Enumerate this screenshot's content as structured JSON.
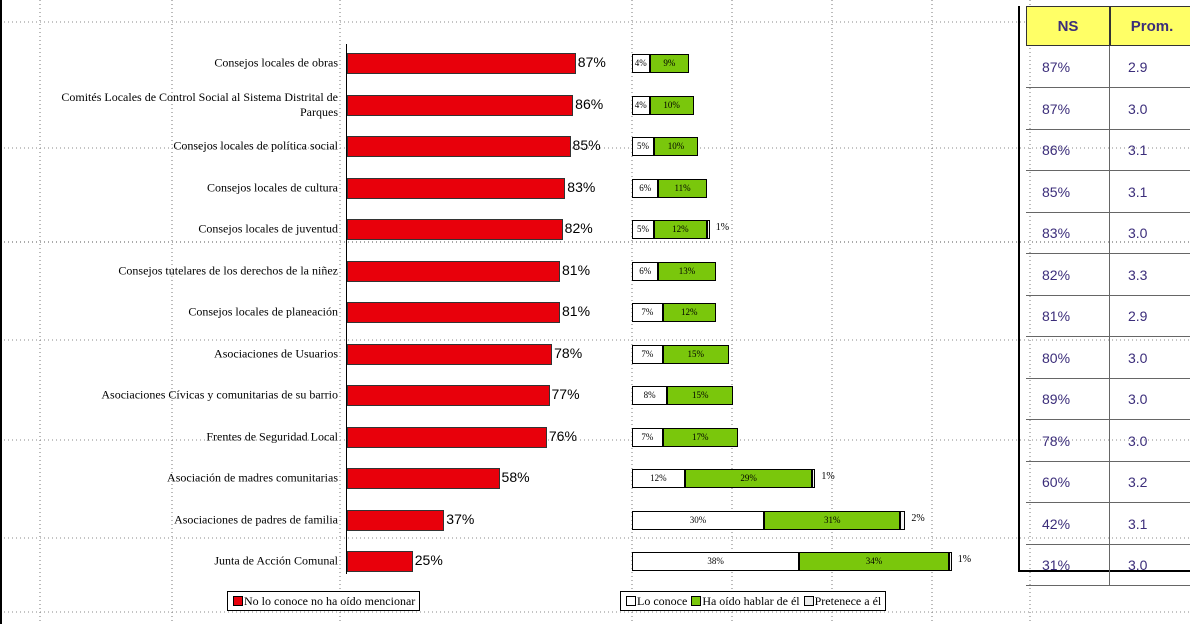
{
  "chart_data": {
    "type": "bar",
    "categories": [
      "Consejos locales de obras",
      "Comités Locales de Control Social al Sistema Distrital de Parques",
      "Consejos locales de política social",
      "Consejos locales de cultura",
      "Consejos locales de juventud",
      "Consejos tutelares de los derechos de la niñez",
      "Consejos locales de planeación",
      "Asociaciones de Usuarios",
      "Asociaciones Cívicas y comunitarias de su barrio",
      "Frentes de Seguridad Local",
      "Asociación de madres comunitarias",
      "Asociaciones de padres de familia",
      "Junta de Acción Comunal"
    ],
    "no_conoce": {
      "legend": "No lo conoce no ha oído mencionar",
      "color": "#e8000b",
      "values": [
        87,
        86,
        85,
        83,
        82,
        81,
        81,
        78,
        77,
        76,
        58,
        37,
        25
      ],
      "labels": [
        "87%",
        "86%",
        "85%",
        "83%",
        "82%",
        "81%",
        "81%",
        "78%",
        "77%",
        "76%",
        "58%",
        "37%",
        "25%"
      ]
    },
    "stacked": {
      "legend": [
        "Lo conoce",
        "Ha oído hablar de él",
        "Pretenece a él"
      ],
      "colors": [
        "#ffffff",
        "#7ac70c",
        "#ececec"
      ],
      "lo_conoce": [
        4,
        4,
        5,
        6,
        5,
        6,
        7,
        7,
        8,
        7,
        12,
        30,
        38
      ],
      "ha_oido": [
        9,
        10,
        10,
        11,
        12,
        13,
        12,
        15,
        15,
        17,
        29,
        31,
        34
      ],
      "pertenece": [
        0,
        0,
        0,
        0,
        1,
        0,
        0,
        0,
        0,
        0,
        1,
        2,
        1
      ],
      "lo_conoce_labels": [
        "4%",
        "4%",
        "5%",
        "6%",
        "5%",
        "6%",
        "7%",
        "7%",
        "8%",
        "7%",
        "12%",
        "30%",
        "38%"
      ],
      "ha_oido_labels": [
        "9%",
        "10%",
        "10%",
        "11%",
        "12%",
        "13%",
        "12%",
        "15%",
        "15%",
        "17%",
        "29%",
        "31%",
        "34%"
      ],
      "pertenece_labels": [
        "",
        "",
        "",
        "",
        "1%",
        "",
        "",
        "",
        "",
        "",
        "1%",
        "2%",
        "1%"
      ]
    },
    "table": {
      "headers": [
        "NS",
        "Prom."
      ],
      "ns": [
        "87%",
        "87%",
        "86%",
        "85%",
        "83%",
        "82%",
        "81%",
        "80%",
        "89%",
        "78%",
        "60%",
        "42%",
        "31%"
      ],
      "prom": [
        "2.9",
        "3.0",
        "3.1",
        "3.1",
        "3.0",
        "3.3",
        "2.9",
        "3.0",
        "3.0",
        "3.0",
        "3.2",
        "3.1",
        "3.0"
      ]
    }
  },
  "legend_left": {
    "label": "No lo conoce no ha oído mencionar"
  },
  "legend_right": {
    "lo_conoce": "Lo conoce",
    "ha_oido": "Ha oído hablar de él",
    "pertenece": "Pretenece a él"
  }
}
